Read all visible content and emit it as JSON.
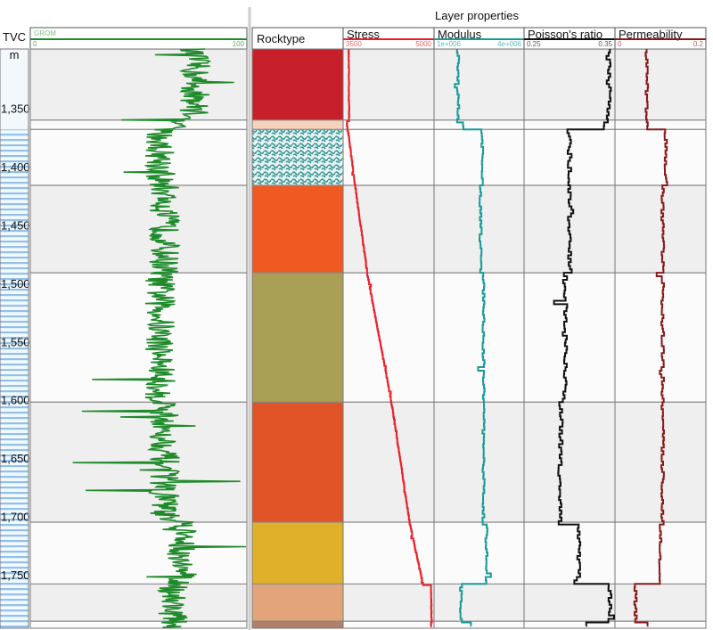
{
  "chart_data": {
    "type": "line",
    "title": "Layer properties",
    "depth_axis": {
      "label": "TVC",
      "unit": "m",
      "ticks": [
        "1,350",
        "1,400",
        "1,450",
        "1,500",
        "1,550",
        "1,600",
        "1,650",
        "1,700",
        "1,750"
      ],
      "tick_values": [
        1350,
        1400,
        1450,
        1500,
        1550,
        1600,
        1650,
        1700,
        1750
      ],
      "range": [
        1299,
        1796
      ]
    },
    "tracks": [
      {
        "key": "gr",
        "name": "GROM",
        "min_label": "0",
        "max_label": "100",
        "range": [
          0,
          100
        ],
        "color": "#1e8a2a"
      },
      {
        "key": "rock",
        "name": "Rocktype"
      },
      {
        "key": "stress",
        "name": "Stress",
        "min_label": "3500",
        "max_label": "5000",
        "range": [
          3500,
          5000
        ],
        "color": "#e8202a"
      },
      {
        "key": "mod",
        "name": "Modulus",
        "min_label": "1e+006",
        "max_label": "4e+006",
        "range": [
          1000000,
          4000000
        ],
        "color": "#1a9a9a"
      },
      {
        "key": "pr",
        "name": "Poisson's ratio",
        "min_label": "0.25",
        "max_label": "0.35",
        "range": [
          0.25,
          0.35
        ],
        "color": "#111111"
      },
      {
        "key": "perm",
        "name": "Permeability",
        "min_label": "0",
        "max_label": "0.2",
        "range": [
          0,
          0.2
        ],
        "color": "#8a1a1a"
      }
    ],
    "layers": [
      {
        "top": 1299,
        "bottom": 1360,
        "color": "#c8202a",
        "gr": 76,
        "stress": [
          3590,
          3600
        ],
        "mod": 1800000,
        "pr": 0.343,
        "perm": 0.07
      },
      {
        "top": 1360,
        "bottom": 1368,
        "color": "#f5d3bd",
        "gr": 66,
        "stress": [
          3560,
          3570
        ],
        "mod": 2000000,
        "pr": 0.34,
        "perm": 0.07
      },
      {
        "top": 1368,
        "bottom": 1416,
        "color": "#5aa8a8",
        "pattern": "teal",
        "gr": 60,
        "stress": [
          3580,
          3700
        ],
        "mod": 2600000,
        "pr": 0.3,
        "perm": 0.112
      },
      {
        "top": 1416,
        "bottom": 1491,
        "color": "#f05a22",
        "gr": 62,
        "stress": [
          3700,
          3900
        ],
        "mod": 2550000,
        "pr": 0.3,
        "perm": 0.105
      },
      {
        "top": 1491,
        "bottom": 1602,
        "color": "#a9a055",
        "gr": 60,
        "stress": [
          3900,
          4300
        ],
        "mod": 2650000,
        "pr": 0.295,
        "perm": 0.105
      },
      {
        "top": 1602,
        "bottom": 1705,
        "color": "#e05428",
        "gr": 62,
        "stress": [
          4300,
          4600
        ],
        "mod": 2650000,
        "pr": 0.29,
        "perm": 0.105
      },
      {
        "top": 1705,
        "bottom": 1758,
        "color": "#e0b02a",
        "gr": 70,
        "stress": [
          4600,
          4820
        ],
        "mod": 2750000,
        "pr": 0.31,
        "perm": 0.1
      },
      {
        "top": 1758,
        "bottom": 1790,
        "color": "#e4a47a",
        "gr": 66,
        "stress": [
          4950,
          4960
        ],
        "mod": 1900000,
        "pr": 0.345,
        "perm": 0.045
      },
      {
        "top": 1790,
        "bottom": 1796,
        "color": "#b0806a",
        "gr": 66,
        "stress": [
          4950,
          4950
        ],
        "mod": 2200000,
        "pr": 0.32,
        "perm": 0.07
      }
    ]
  }
}
